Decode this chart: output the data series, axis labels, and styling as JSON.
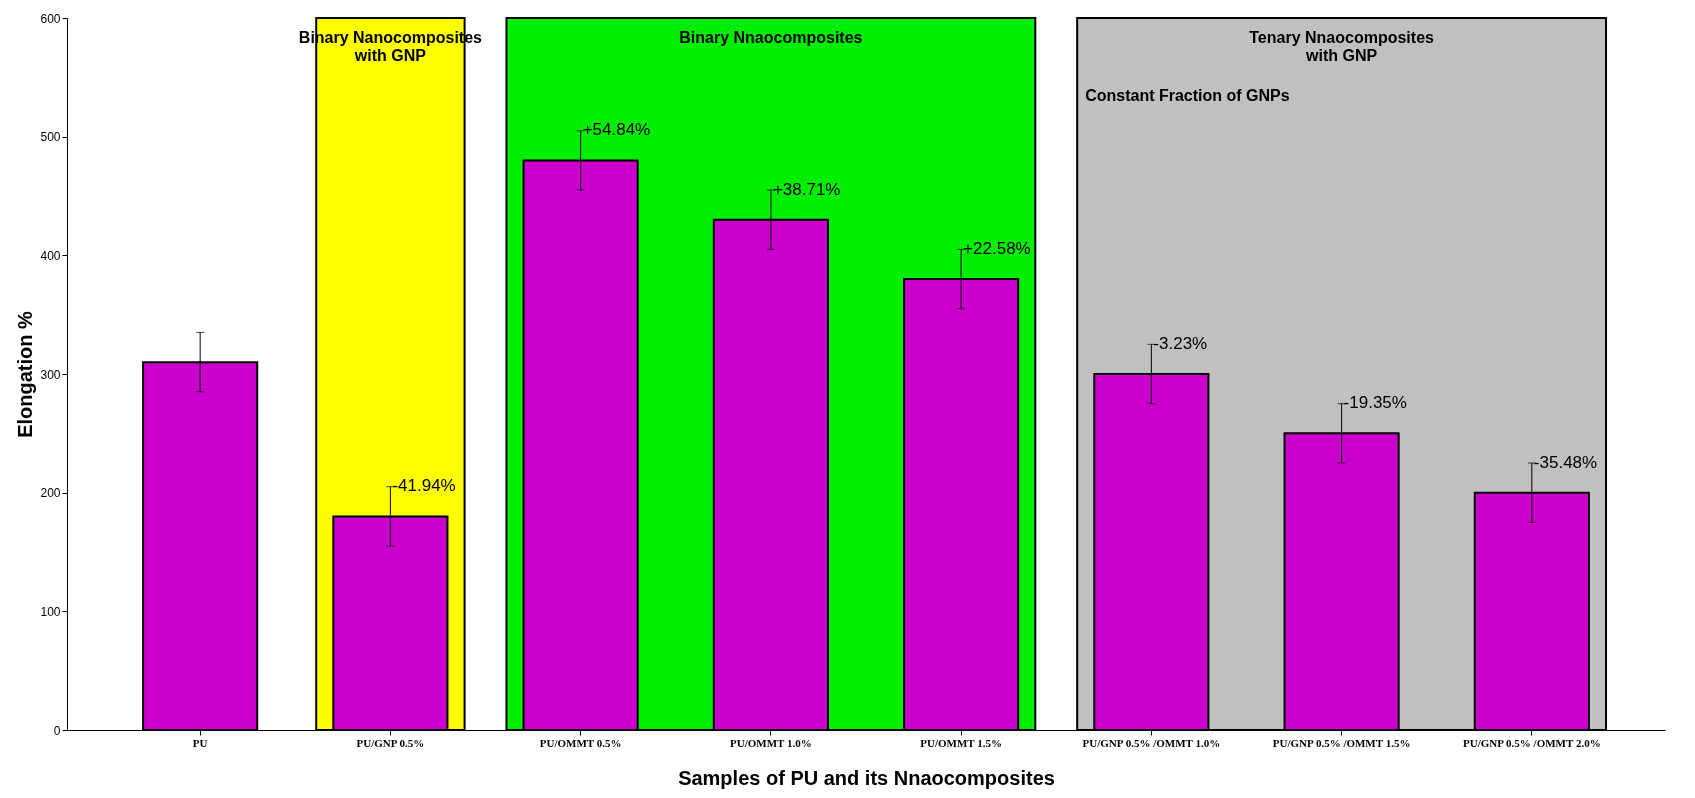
{
  "chart_data": {
    "type": "bar",
    "xlabel": "Samples of PU and its Nnaocomposites",
    "ylabel": "Elongation %",
    "categories": [
      "PU",
      "PU/GNP 0.5%",
      "PU/OMMT 0.5%",
      "PU/OMMT 1.0%",
      "PU/OMMT 1.5%",
      "PU/GNP 0.5% /OMMT 1.0%",
      "PU/GNP 0.5% /OMMT 1.5%",
      "PU/GNP 0.5% /OMMT 2.0%"
    ],
    "values": [
      310,
      180,
      480,
      430,
      380,
      300,
      250,
      200
    ],
    "errors": [
      25,
      25,
      25,
      25,
      25,
      25,
      25,
      25
    ],
    "color": "#cc00cc",
    "ylim": [
      0,
      600
    ],
    "yticks": [
      0,
      100,
      200,
      300,
      400,
      500,
      600
    ],
    "grid": false,
    "bands": [
      {
        "axis": "x",
        "from": "PU/GNP 0.5%",
        "to": "PU/GNP 0.5%",
        "color": "#ffff00",
        "label": "Binary Nanocomposites\nwith GNP"
      },
      {
        "axis": "x",
        "from": "PU/OMMT 0.5%",
        "to": "PU/OMMT 1.5%",
        "color": "#00ee00",
        "label": "Binary Nnaocomposites"
      },
      {
        "axis": "x",
        "from": "PU/GNP 0.5% /OMMT 1.0%",
        "to": "PU/GNP 0.5% /OMMT 2.0%",
        "color": "#c0c0c0",
        "label": "Tenary Nnaocomposites\nwith GNP"
      }
    ],
    "annotations": [
      {
        "text": "-41.94%",
        "x": "PU/GNP 0.5%",
        "y": 180
      },
      {
        "text": "+54.84%",
        "x": "PU/OMMT 0.5%",
        "y": 480
      },
      {
        "text": "+38.71%",
        "x": "PU/OMMT 1.0%",
        "y": 430
      },
      {
        "text": "+22.58%",
        "x": "PU/OMMT 1.5%",
        "y": 380
      },
      {
        "text": "-3.23%",
        "x": "PU/GNP 0.5% /OMMT 1.0%",
        "y": 300
      },
      {
        "text": "-19.35%",
        "x": "PU/GNP 0.5% /OMMT 1.5%",
        "y": 250
      },
      {
        "text": "-35.48%",
        "x": "PU/GNP 0.5% /OMMT 2.0%",
        "y": 200
      },
      "Constant Fraction of GNPs"
    ]
  }
}
